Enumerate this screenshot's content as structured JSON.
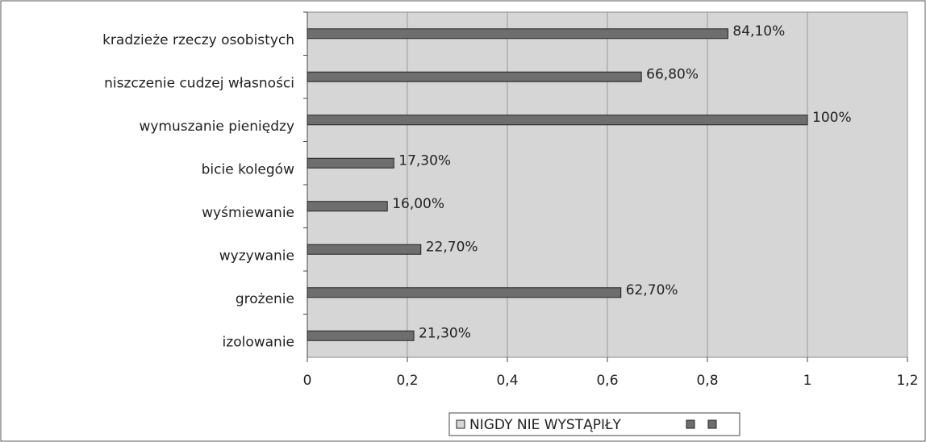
{
  "chart_data": {
    "type": "barh",
    "categories": [
      "kradzieże rzeczy osobistych",
      "niszczenie cudzej własności",
      "wymuszanie pieniędzy",
      "bicie kolegów",
      "wyśmiewanie",
      "wyzywanie",
      "grożenie",
      "izolowanie"
    ],
    "series": [
      {
        "name": "NIGDY NIE WYSTĄPIŁY",
        "color": "#6e6e6e",
        "values": [
          0.841,
          0.668,
          1,
          0.173,
          0.16,
          0.227,
          0.627,
          0.213
        ],
        "value_labels": [
          "84,10%",
          "66,80%",
          "100%",
          "17,30%",
          "16,00%",
          "22,70%",
          "62,70%",
          "21,30%"
        ]
      }
    ],
    "xlim": [
      0,
      1.2
    ],
    "xticks": [
      0,
      {
        "value": 0.2,
        "label": "0,2"
      },
      {
        "value": 0.4,
        "label": "0,4"
      },
      {
        "value": 0.6,
        "label": "0,6"
      },
      {
        "value": 0.8,
        "label": "0,8"
      },
      1,
      {
        "value": 1.2,
        "label": "1,2"
      }
    ],
    "grid": true,
    "legend": "bottom"
  }
}
